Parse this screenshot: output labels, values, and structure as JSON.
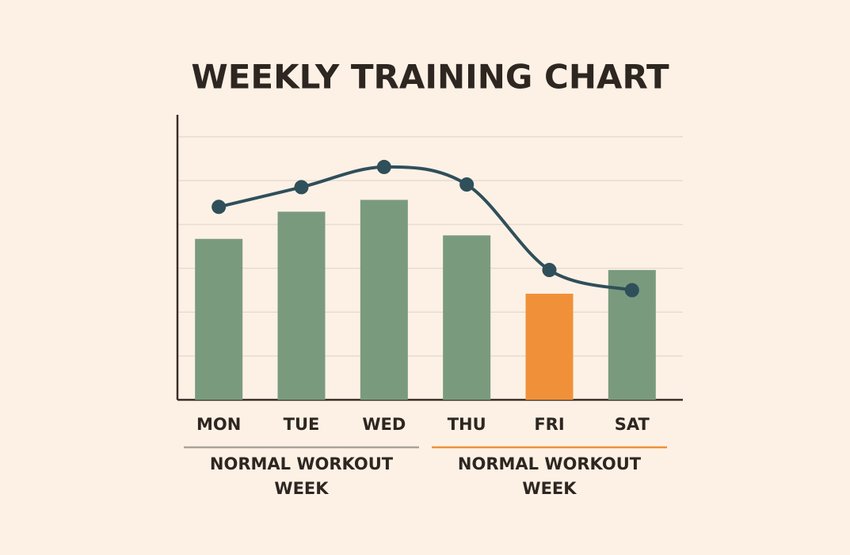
{
  "chart_data": {
    "type": "bar-line",
    "title": "WEEKLY TRAINING CHART",
    "categories": [
      "MON",
      "TUE",
      "WED",
      "THU",
      "FRI",
      "SAT"
    ],
    "series": [
      {
        "type": "bar",
        "colors": [
          "#7a9a7e",
          "#7a9a7e",
          "#7a9a7e",
          "#7a9a7e",
          "#f0913a",
          "#7a9a7e"
        ],
        "values": [
          3.67,
          4.29,
          4.56,
          3.75,
          2.42,
          2.96
        ]
      },
      {
        "type": "line",
        "color": "#2f4f5a",
        "values": [
          4.4,
          4.85,
          5.31,
          4.91,
          2.96,
          2.5
        ]
      }
    ],
    "ylim": [
      0,
      6.5
    ],
    "yticks": [
      1,
      2,
      3,
      4,
      5,
      6
    ],
    "grid": true,
    "groups": [
      {
        "label": "NORMAL WORKOUT WEEK",
        "color": "#a9a39b"
      },
      {
        "label": "NORMAL WORKOUT WEEK",
        "color": "#f0913a"
      }
    ]
  }
}
